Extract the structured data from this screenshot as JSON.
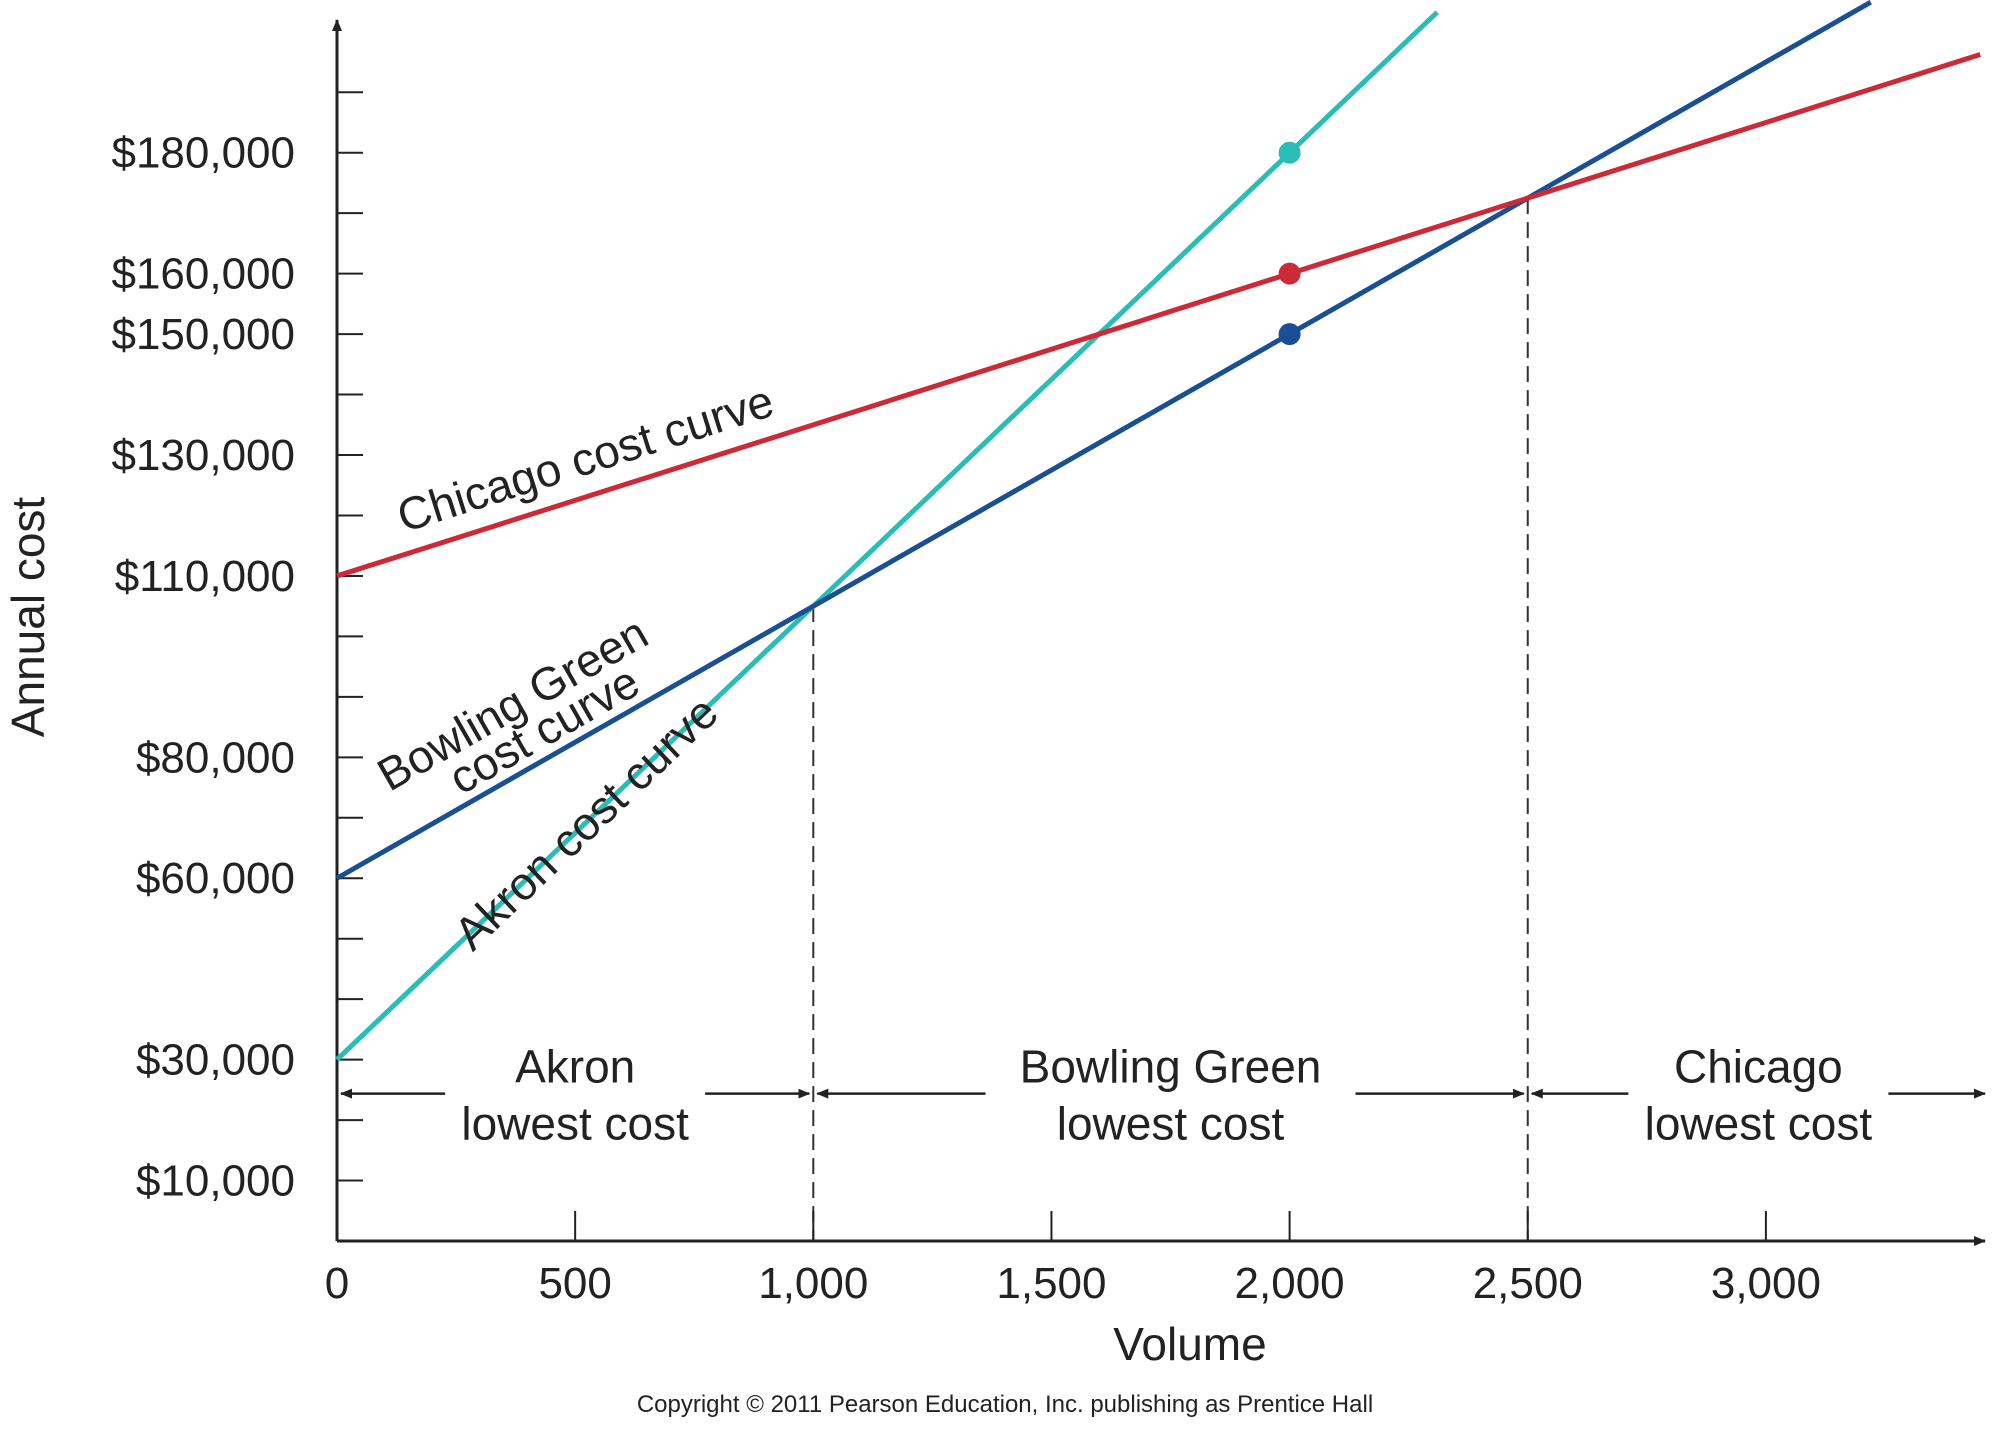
{
  "chart_data": {
    "type": "line",
    "xlabel": "Volume",
    "ylabel": "Annual cost",
    "xlim": [
      0,
      3450
    ],
    "ylim": [
      0,
      202000
    ],
    "x_ticks": [
      0,
      500,
      1000,
      1500,
      2000,
      2500,
      3000
    ],
    "x_tick_labels": [
      "0",
      "500",
      "1,000",
      "1,500",
      "2,000",
      "2,500",
      "3,000"
    ],
    "y_ticks": [
      10000,
      30000,
      60000,
      80000,
      110000,
      130000,
      150000,
      160000,
      180000
    ],
    "y_tick_labels": [
      "$10,000",
      "$30,000",
      "$60,000",
      "$80,000",
      "$110,000",
      "$130,000",
      "$150,000",
      "$160,000",
      "$180,000"
    ],
    "y_minor_step": 10000,
    "series": [
      {
        "name": "Akron cost curve",
        "color": "#2ABDB5",
        "fixed": 30000,
        "variable": 75,
        "x_end": 2310,
        "point": [
          2000,
          180000
        ]
      },
      {
        "name": "Bowling Green cost curve",
        "color": "#1B4F93",
        "fixed": 60000,
        "variable": 45,
        "x_end": 3220,
        "point": [
          2000,
          150000
        ]
      },
      {
        "name": "Chicago cost curve",
        "color": "#CC2A36",
        "fixed": 110000,
        "variable": 25,
        "x_end": 3450,
        "point": [
          2000,
          160000
        ]
      }
    ],
    "crossovers": [
      1000,
      2500
    ],
    "regions": [
      {
        "line1": "Akron",
        "line2": "lowest cost",
        "from": 0,
        "to": 1000
      },
      {
        "line1": "Bowling Green",
        "line2": "lowest cost",
        "from": 1000,
        "to": 2500
      },
      {
        "line1": "Chicago",
        "line2": "lowest cost",
        "from": 2500,
        "to": 3450
      }
    ],
    "region_arrow_y": 30000,
    "footer": "Copyright © 2011 Pearson Education, Inc. publishing as Prentice Hall"
  }
}
